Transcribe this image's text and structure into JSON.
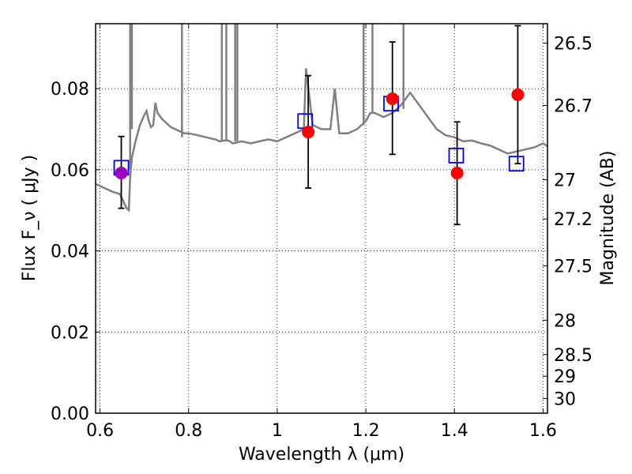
{
  "chart_data": {
    "type": "scatter",
    "xlabel": "Wavelength  λ (μm)",
    "ylabel": "Flux  F_ν  ( μJy )",
    "y2label": "Magnitude (AB)",
    "xlim": [
      0.59,
      1.61
    ],
    "ylim": [
      0.0,
      0.096
    ],
    "grid": true,
    "x_ticks": [
      0.6,
      0.8,
      1.0,
      1.2,
      1.4,
      1.6
    ],
    "x_tick_labels": [
      "0.6",
      "0.8",
      "1",
      "1.2",
      "1.4",
      "1.6"
    ],
    "y_ticks": [
      0.0,
      0.02,
      0.04,
      0.06,
      0.08
    ],
    "y_tick_labels": [
      "0.00",
      "0.02",
      "0.04",
      "0.06",
      "0.08"
    ],
    "y2_ticks": [
      {
        "label": "26.5",
        "value": 26.5
      },
      {
        "label": "26.7",
        "value": 26.7
      },
      {
        "label": "27",
        "value": 27.0
      },
      {
        "label": "27.2",
        "value": 27.2
      },
      {
        "label": "27.5",
        "value": 27.5
      },
      {
        "label": "28",
        "value": 28.0
      },
      {
        "label": "28.5",
        "value": 28.5
      },
      {
        "label": "29",
        "value": 29.0
      },
      {
        "label": "30",
        "value": 30.0
      }
    ],
    "series": [
      {
        "kind": "model_sed_line",
        "color": "#808080",
        "x": [
          0.59,
          0.61,
          0.63,
          0.645,
          0.66,
          0.665,
          0.668,
          0.672,
          0.68,
          0.69,
          0.7,
          0.705,
          0.71,
          0.715,
          0.72,
          0.725,
          0.73,
          0.74,
          0.75,
          0.76,
          0.77,
          0.78,
          0.79,
          0.8,
          0.82,
          0.84,
          0.86,
          0.87,
          0.88,
          0.89,
          0.9,
          0.92,
          0.94,
          0.96,
          0.98,
          1.0,
          1.02,
          1.04,
          1.06,
          1.065,
          1.08,
          1.1,
          1.12,
          1.13,
          1.14,
          1.16,
          1.18,
          1.2,
          1.21,
          1.22,
          1.24,
          1.26,
          1.28,
          1.3,
          1.32,
          1.34,
          1.36,
          1.38,
          1.4,
          1.42,
          1.44,
          1.46,
          1.48,
          1.5,
          1.52,
          1.54,
          1.56,
          1.58,
          1.6,
          1.61
        ],
        "y": [
          0.0565,
          0.0555,
          0.0545,
          0.054,
          0.0505,
          0.05,
          0.058,
          0.063,
          0.067,
          0.071,
          0.0735,
          0.0745,
          0.072,
          0.0705,
          0.071,
          0.0765,
          0.074,
          0.0725,
          0.0715,
          0.0705,
          0.07,
          0.0695,
          0.069,
          0.069,
          0.0685,
          0.068,
          0.0675,
          0.067,
          0.0672,
          0.0672,
          0.0665,
          0.067,
          0.0665,
          0.067,
          0.0675,
          0.067,
          0.068,
          0.069,
          0.07,
          0.085,
          0.071,
          0.07,
          0.07,
          0.08,
          0.069,
          0.069,
          0.07,
          0.072,
          0.074,
          0.074,
          0.073,
          0.074,
          0.076,
          0.079,
          0.076,
          0.073,
          0.07,
          0.0685,
          0.068,
          0.067,
          0.0672,
          0.0665,
          0.066,
          0.065,
          0.064,
          0.0645,
          0.065,
          0.0655,
          0.0665,
          0.0658
        ]
      },
      {
        "kind": "model_points",
        "marker": "open-square",
        "color": "#0000ff",
        "x": [
          0.648,
          1.063,
          1.257,
          1.404,
          1.54
        ],
        "y": [
          0.0605,
          0.072,
          0.0763,
          0.0635,
          0.0615
        ]
      },
      {
        "kind": "observed_points",
        "marker": "filled-circle",
        "color": "#ff0000",
        "x": [
          1.07,
          1.26,
          1.406,
          1.543
        ],
        "y": [
          0.0693,
          0.0775,
          0.0592,
          0.0785
        ],
        "yerr_low": [
          0.0555,
          0.0638,
          0.0465,
          0.0615
        ],
        "yerr_high": [
          0.0832,
          0.0915,
          0.0718,
          0.0955
        ]
      },
      {
        "kind": "observed_points",
        "marker": "filled-circle",
        "color": "#a000c0",
        "x": [
          0.648
        ],
        "y": [
          0.0592
        ],
        "yerr_low": [
          0.0505
        ],
        "yerr_high": [
          0.0682
        ]
      }
    ]
  }
}
